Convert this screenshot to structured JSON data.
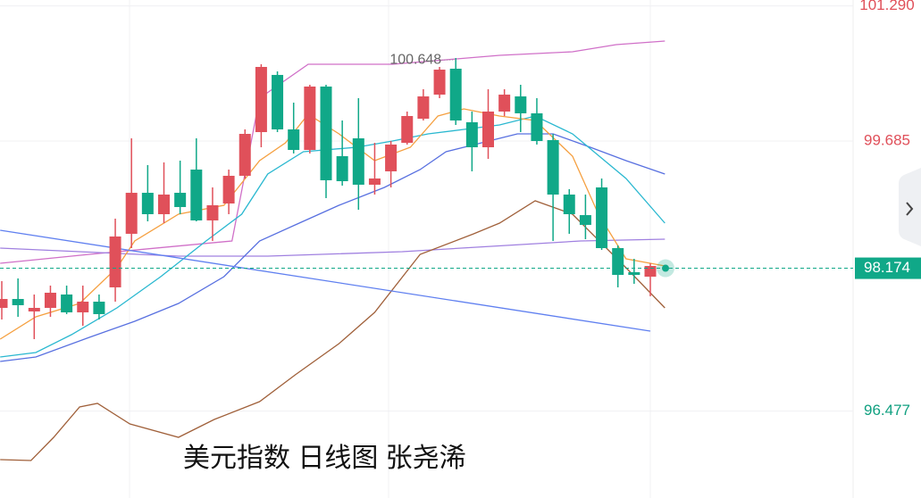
{
  "chart_data": {
    "type": "candlestick",
    "title": "美元指数 日线图 张尧浠",
    "ylim": [
      95.445,
      101.36
    ],
    "yticks": [
      {
        "value": 101.29,
        "label": "101.290"
      },
      99.685,
      96.477
    ],
    "ytick_colors": [
      "#e0505a",
      "#e0505a",
      "#10a080"
    ],
    "up_color": "#e0505a",
    "down_color": "#10a888",
    "open": [
      97.703,
      97.809,
      97.661,
      97.703,
      97.862,
      97.65,
      97.777,
      97.947,
      98.583,
      99.07,
      98.816,
      99.07,
      99.346,
      98.742,
      98.943,
      99.272,
      99.791,
      100.47,
      99.823,
      99.579,
      100.332,
      99.505,
      99.717,
      99.166,
      99.325,
      99.664,
      99.95,
      100.236,
      100.544,
      99.908,
      99.611,
      100.035,
      100.215,
      100.014,
      99.696,
      99.049,
      98.805,
      99.134,
      98.413,
      98.127,
      98.074
    ],
    "high": [
      98.021,
      98.053,
      97.862,
      97.968,
      97.968,
      97.968,
      97.862,
      98.763,
      99.717,
      99.399,
      99.431,
      99.452,
      99.717,
      99.134,
      99.346,
      99.823,
      100.597,
      100.512,
      100.141,
      100.353,
      100.353,
      99.929,
      100.194,
      99.664,
      99.685,
      100.035,
      100.3,
      100.565,
      100.671,
      100.035,
      100.3,
      100.3,
      100.353,
      100.194,
      99.77,
      99.113,
      99.049,
      99.24,
      98.445,
      98.286,
      98.233
    ],
    "low": [
      97.565,
      97.597,
      97.332,
      97.597,
      97.629,
      97.491,
      97.565,
      97.777,
      98.413,
      98.731,
      98.71,
      98.816,
      98.731,
      98.498,
      98.816,
      99.24,
      99.611,
      99.791,
      99.537,
      99.537,
      99.007,
      99.155,
      98.869,
      99.049,
      99.134,
      99.643,
      99.929,
      100.194,
      99.876,
      99.325,
      99.473,
      99.982,
      99.791,
      99.643,
      98.498,
      98.583,
      98.519,
      98.392,
      97.947,
      97.989,
      97.841
    ],
    "close": [
      97.809,
      97.735,
      97.703,
      97.883,
      97.65,
      97.777,
      97.629,
      98.551,
      99.07,
      98.816,
      99.049,
      98.901,
      98.742,
      98.922,
      99.272,
      99.77,
      100.565,
      99.823,
      99.579,
      100.332,
      99.219,
      99.208,
      99.166,
      99.24,
      99.643,
      99.982,
      100.215,
      100.533,
      99.929,
      99.611,
      100.035,
      100.236,
      100.014,
      99.685,
      99.049,
      98.816,
      98.689,
      98.413,
      98.095,
      98.095,
      98.201
    ],
    "series": [
      {
        "color": "#d070c8",
        "x": [
          -0.1,
          5.4,
          14.2,
          15.9,
          18.9,
          24.1,
          30.7,
          35.2,
          37.9,
          40.9
        ],
        "values": [
          98.233,
          98.339,
          98.498,
          100.194,
          100.597,
          100.597,
          100.703,
          100.745,
          100.83,
          100.872
        ]
      },
      {
        "color": "#a080e0",
        "x": [
          -0.1,
          10.9,
          16.4,
          24.7,
          30.2,
          35.7,
          40.9
        ],
        "values": [
          98.413,
          98.318,
          98.318,
          98.371,
          98.434,
          98.498,
          98.519
        ]
      },
      {
        "color": "#5870e0",
        "x": [
          -0.1,
          2.1,
          5.4,
          8.2,
          10.9,
          13.7,
          15.9,
          18.1,
          20.8,
          23.6,
          25.8,
          27.4,
          29.6,
          31.8,
          34.0,
          36.3,
          38.5,
          40.9
        ],
        "values": [
          97.067,
          97.12,
          97.353,
          97.544,
          97.756,
          98.074,
          98.498,
          98.689,
          98.922,
          99.134,
          99.346,
          99.558,
          99.664,
          99.77,
          99.77,
          99.611,
          99.452,
          99.293
        ]
      },
      {
        "color": "#2ab8d0",
        "x": [
          -0.1,
          2.1,
          4.3,
          7.1,
          9.8,
          12.6,
          14.8,
          16.4,
          18.6,
          21.9,
          24.1,
          26.3,
          28.5,
          30.7,
          32.9,
          35.2,
          38.5,
          40.9
        ],
        "values": [
          97.12,
          97.173,
          97.385,
          97.703,
          98.074,
          98.498,
          98.816,
          99.293,
          99.558,
          99.611,
          99.685,
          99.77,
          99.823,
          99.876,
          99.982,
          99.77,
          99.24,
          98.71
        ]
      },
      {
        "color": "#f5a040",
        "x": [
          -0.1,
          2.1,
          4.8,
          7.1,
          8.2,
          10.9,
          13.7,
          15.9,
          17.5,
          18.9,
          20.8,
          23.0,
          25.2,
          26.9,
          28.5,
          30.7,
          32.9,
          35.2,
          36.8,
          38.5,
          40.9
        ],
        "values": [
          97.332,
          97.597,
          97.756,
          98.18,
          98.498,
          98.816,
          98.922,
          99.452,
          99.664,
          100.003,
          99.77,
          99.452,
          99.611,
          99.982,
          100.067,
          99.982,
          99.929,
          99.505,
          98.816,
          98.286,
          98.201
        ]
      },
      {
        "color": "#a0603a",
        "x": [
          -0.1,
          1.8,
          3.2,
          4.8,
          5.9,
          7.9,
          10.9,
          13.1,
          15.9,
          18.1,
          20.8,
          23.0,
          25.8,
          29.1,
          30.7,
          32.9,
          35.2,
          38.5,
          40.9
        ],
        "values": [
          95.901,
          95.89,
          96.166,
          96.526,
          96.569,
          96.325,
          96.166,
          96.378,
          96.59,
          96.908,
          97.279,
          97.65,
          98.339,
          98.583,
          98.71,
          98.975,
          98.816,
          98.18,
          97.703
        ]
      },
      {
        "color": "#6080f0",
        "x": [
          -0.1,
          40.0
        ],
        "values": [
          98.625,
          97.427
        ]
      }
    ],
    "last_price": 98.174,
    "last_price_color": "#10a888",
    "annotation": {
      "label": "100.648",
      "value": 100.648,
      "x": 28
    }
  }
}
